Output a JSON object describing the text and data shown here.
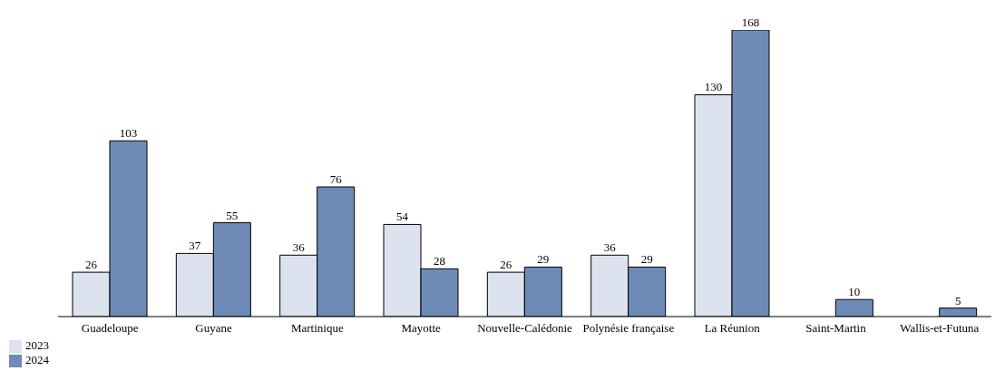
{
  "chart_data": {
    "type": "bar",
    "categories": [
      "Guadeloupe",
      "Guyane",
      "Martinique",
      "Mayotte",
      "Nouvelle-Calédonie",
      "Polynésie française",
      "La Réunion",
      "Saint-Martin",
      "Wallis-et-Futuna"
    ],
    "series": [
      {
        "name": "2023",
        "color": "#dde3ee",
        "values": [
          26,
          37,
          36,
          54,
          26,
          36,
          130,
          null,
          null
        ]
      },
      {
        "name": "2024",
        "color": "#6e8bb8",
        "values": [
          103,
          55,
          76,
          28,
          29,
          29,
          168,
          10,
          5
        ]
      }
    ],
    "data_labels": true,
    "grid": false,
    "legend": "bottom left"
  }
}
